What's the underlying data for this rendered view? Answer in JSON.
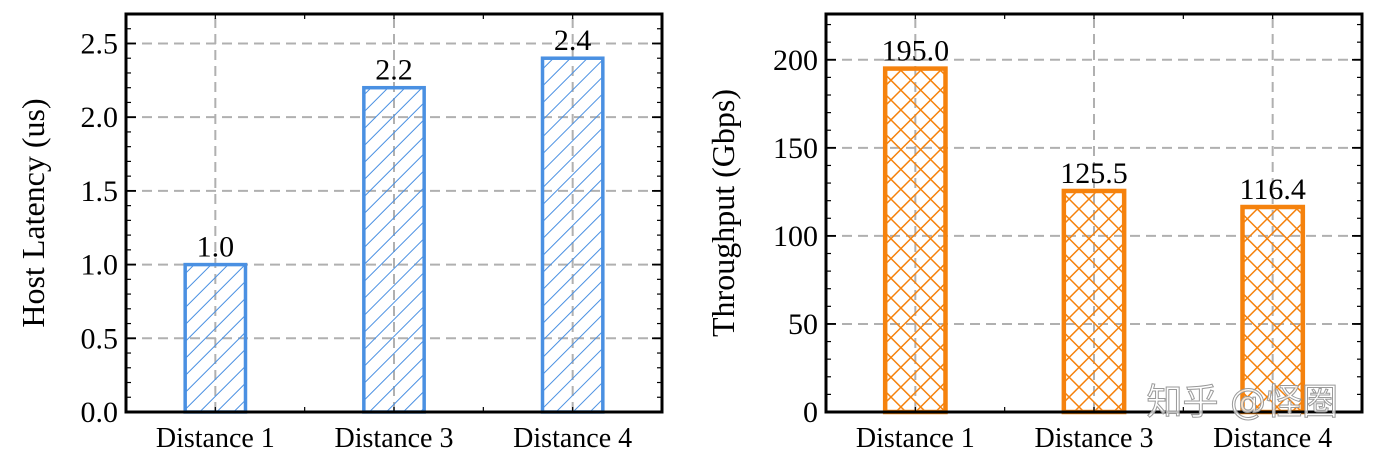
{
  "chart_data": [
    {
      "type": "bar",
      "categories": [
        "Distance 1",
        "Distance 3",
        "Distance 4"
      ],
      "values": [
        1.0,
        2.2,
        2.4
      ],
      "value_labels": [
        "1.0",
        "2.2",
        "2.4"
      ],
      "xlabel": "",
      "ylabel": "Host Latency (us)",
      "ylim": [
        0,
        2.7
      ],
      "yticks": [
        0.0,
        0.5,
        1.0,
        1.5,
        2.0,
        2.5
      ],
      "ytick_labels": [
        "0.0",
        "0.5",
        "1.0",
        "1.5",
        "2.0",
        "2.5"
      ],
      "grid": true,
      "color": "#4a90e2",
      "hatch": "diagonal"
    },
    {
      "type": "bar",
      "categories": [
        "Distance 1",
        "Distance 3",
        "Distance 4"
      ],
      "values": [
        195.0,
        125.5,
        116.4
      ],
      "value_labels": [
        "195.0",
        "125.5",
        "116.4"
      ],
      "xlabel": "",
      "ylabel": "Throughput (Gbps)",
      "ylim": [
        0,
        226
      ],
      "yticks": [
        0,
        50,
        100,
        150,
        200
      ],
      "ytick_labels": [
        "0",
        "50",
        "100",
        "150",
        "200"
      ],
      "grid": true,
      "color": "#f5820d",
      "hatch": "crosshatch"
    }
  ],
  "watermark": "知乎 @怪圈"
}
